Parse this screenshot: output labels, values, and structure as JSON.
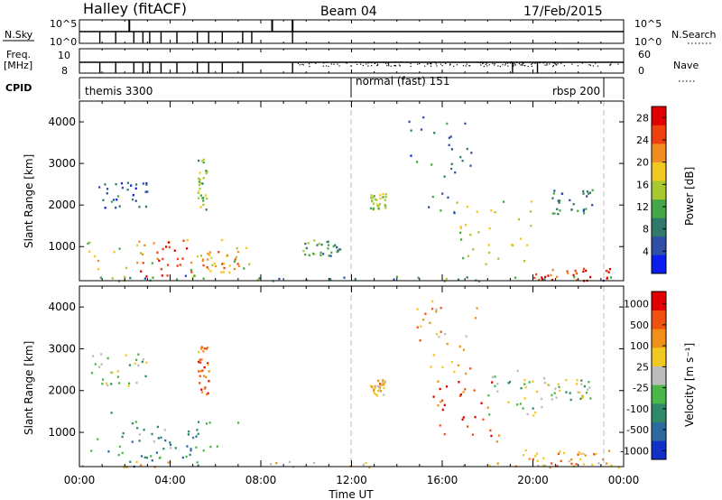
{
  "header": {
    "station": "Halley (fitACF)",
    "beam": "Beam 04",
    "date": "17/Feb/2015"
  },
  "panels": {
    "nsky": {
      "left_label": "N.Sky",
      "left_ticks": [
        "10^5",
        "10^0"
      ],
      "right_label": "N.Search",
      "right_ticks": [
        "10^5",
        "10^0"
      ]
    },
    "freq": {
      "left_label_lines": [
        "Freq.",
        "[MHz]"
      ],
      "left_ticks": [
        "10",
        "8"
      ],
      "right_label": "Nave",
      "right_ticks": [
        "60",
        "0"
      ]
    },
    "cpid": {
      "label": "CPID",
      "modes": [
        {
          "name": "themis 3300",
          "start_hour": 0
        },
        {
          "name": "normal (fast) 151",
          "start_hour": 12
        },
        {
          "name": "rbsp 200",
          "start_hour": 23
        }
      ]
    }
  },
  "x_axis": {
    "label": "Time UT",
    "ticks": [
      "00:00",
      "04:00",
      "08:00",
      "12:00",
      "16:00",
      "20:00",
      "00:00"
    ],
    "range_hours": [
      0,
      24
    ]
  },
  "chart_data": [
    {
      "type": "heatmap",
      "name": "power",
      "ylabel": "Slant Range [km]",
      "yticks": [
        "1000",
        "2000",
        "3000",
        "4000"
      ],
      "ylim": [
        180,
        4500
      ],
      "xlim": [
        0,
        24
      ],
      "colorbar": {
        "label": "Power [dB]",
        "ticks": [
          "4",
          "8",
          "12",
          "16",
          "20",
          "24",
          "28"
        ],
        "range": [
          0,
          30
        ],
        "colors": [
          "#0a1cf0",
          "#2f4ea8",
          "#2f7a6a",
          "#45a848",
          "#a8c830",
          "#f0c820",
          "#f08c20",
          "#f04010",
          "#e00000"
        ]
      },
      "regions": [
        {
          "t": [
            0.0,
            7.5
          ],
          "r": [
            200,
            1200
          ],
          "level": 0.55
        },
        {
          "t": [
            2.5,
            5.0
          ],
          "r": [
            300,
            1200
          ],
          "level": 0.85
        },
        {
          "t": [
            5.0,
            7.2
          ],
          "r": [
            400,
            900
          ],
          "level": 0.7
        },
        {
          "t": [
            0.5,
            3.0
          ],
          "r": [
            1900,
            2600
          ],
          "level": 0.15
        },
        {
          "t": [
            5.2,
            5.6
          ],
          "r": [
            1900,
            3200
          ],
          "level": 0.45
        },
        {
          "t": [
            9.8,
            11.5
          ],
          "r": [
            800,
            1200
          ],
          "level": 0.35
        },
        {
          "t": [
            12.8,
            13.5
          ],
          "r": [
            1900,
            2300
          ],
          "level": 0.5
        },
        {
          "t": [
            14.5,
            17.5
          ],
          "r": [
            1700,
            4200
          ],
          "level": 0.2
        },
        {
          "t": [
            16.5,
            20.0
          ],
          "r": [
            600,
            2200
          ],
          "level": 0.5
        },
        {
          "t": [
            20.0,
            23.5
          ],
          "r": [
            200,
            500
          ],
          "level": 0.95
        },
        {
          "t": [
            20.8,
            22.6
          ],
          "r": [
            1800,
            2400
          ],
          "level": 0.25
        },
        {
          "t": [
            0.0,
            24.0
          ],
          "r": [
            180,
            320
          ],
          "level": 0.3
        }
      ]
    },
    {
      "type": "heatmap",
      "name": "velocity",
      "ylabel": "Slant Range [km]",
      "yticks": [
        "1000",
        "2000",
        "3000",
        "4000"
      ],
      "ylim": [
        180,
        4500
      ],
      "xlim": [
        0,
        24
      ],
      "colorbar": {
        "label": "Velocity [m s⁻¹]",
        "ticks": [
          "1000",
          "500",
          "100",
          "25",
          "-25",
          "-100",
          "-500",
          "-1000"
        ],
        "colors": [
          "#1030c8",
          "#2c6aa0",
          "#2e8a68",
          "#4ab848",
          "#bcbcbc",
          "#f0c820",
          "#f09018",
          "#f05010",
          "#e00000"
        ]
      },
      "regions": [
        {
          "t": [
            0.0,
            7.0
          ],
          "r": [
            200,
            1500
          ],
          "level": 0.25
        },
        {
          "t": [
            2.5,
            5.2
          ],
          "r": [
            300,
            1200
          ],
          "level": 0.3
        },
        {
          "t": [
            0.5,
            3.0
          ],
          "r": [
            2100,
            2900
          ],
          "level": 0.45
        },
        {
          "t": [
            5.2,
            5.7
          ],
          "r": [
            1900,
            3100
          ],
          "level": 0.85
        },
        {
          "t": [
            12.8,
            13.5
          ],
          "r": [
            1900,
            2300
          ],
          "level": 0.65
        },
        {
          "t": [
            14.8,
            17.5
          ],
          "r": [
            2400,
            4200
          ],
          "level": 0.7
        },
        {
          "t": [
            15.5,
            18.5
          ],
          "r": [
            800,
            2400
          ],
          "level": 0.92
        },
        {
          "t": [
            18.0,
            20.5
          ],
          "r": [
            1400,
            2500
          ],
          "level": 0.45
        },
        {
          "t": [
            20.5,
            22.5
          ],
          "r": [
            1800,
            2300
          ],
          "level": 0.45
        },
        {
          "t": [
            19.5,
            23.5
          ],
          "r": [
            200,
            600
          ],
          "level": 0.72
        },
        {
          "t": [
            0.0,
            24.0
          ],
          "r": [
            180,
            320
          ],
          "level": 0.6
        }
      ]
    }
  ]
}
